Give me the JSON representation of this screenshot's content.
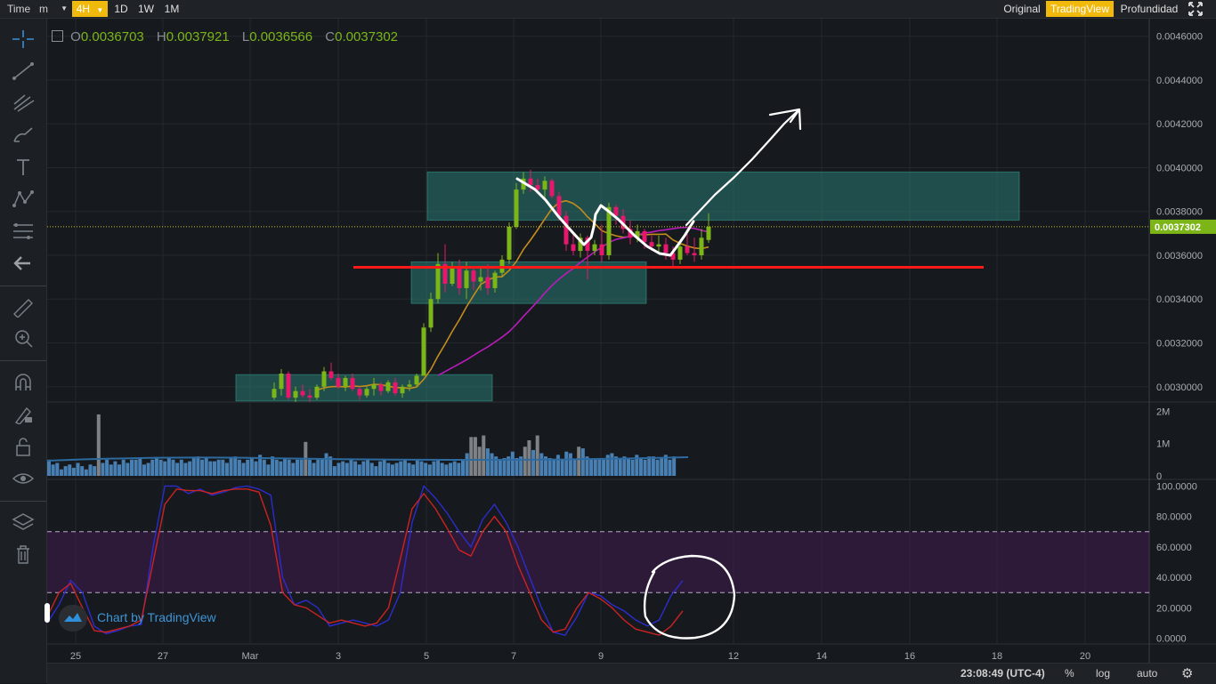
{
  "toolbar": {
    "time_label": "Time",
    "minute_select": "m",
    "timeframes": [
      "4H",
      "1D",
      "1W",
      "1M"
    ],
    "active_timeframe": "4H",
    "views": [
      "Original",
      "TradingView",
      "Profundidad"
    ],
    "active_view": "TradingView"
  },
  "ohlc": {
    "o_label": "O",
    "o_value": "0.0036703",
    "h_label": "H",
    "h_value": "0.0037921",
    "l_label": "L",
    "l_value": "0.0036566",
    "c_label": "C",
    "c_value": "0.0037302"
  },
  "watermark": "Chart by TradingView",
  "bottom": {
    "clock": "23:08:49 (UTC-4)",
    "percent": "%",
    "log": "log",
    "auto": "auto"
  },
  "colors": {
    "up": "#7cb518",
    "down": "#e6186d",
    "ma_short": "#c48c1c",
    "ma_long": "#b81cb8",
    "support_line": "#ff1a1a",
    "zone": "#2a7a72",
    "accent": "#f0b90b"
  },
  "chart_data": [
    {
      "type": "candlestick",
      "last_price": "0.0037302",
      "y_axis": {
        "ticks": [
          "0.0046000",
          "0.0044000",
          "0.0042000",
          "0.0040000",
          "0.0038000",
          "0.0036000",
          "0.0034000",
          "0.0032000",
          "0.0030000"
        ],
        "range": [
          0.00293,
          0.00468
        ]
      },
      "x_axis": {
        "ticks": [
          "25",
          "27",
          "Mar",
          "3",
          "5",
          "7",
          "9",
          "12",
          "14",
          "16",
          "18",
          "20"
        ]
      },
      "support_price": 0.003545,
      "zones": [
        {
          "from": 0.002935,
          "to": 0.003055
        },
        {
          "from": 0.00338,
          "to": 0.00357
        },
        {
          "from": 0.00376,
          "to": 0.00398
        }
      ],
      "candles": [
        [
          0.00295,
          0.00302,
          0.00294,
          0.00299
        ],
        [
          0.00299,
          0.00308,
          0.00296,
          0.00306
        ],
        [
          0.00306,
          0.00307,
          0.00294,
          0.00295
        ],
        [
          0.00295,
          0.003,
          0.00293,
          0.00298
        ],
        [
          0.00298,
          0.00301,
          0.00295,
          0.00296
        ],
        [
          0.00296,
          0.00299,
          0.00293,
          0.00295
        ],
        [
          0.00295,
          0.00301,
          0.00294,
          0.003
        ],
        [
          0.003,
          0.00309,
          0.00298,
          0.00307
        ],
        [
          0.00307,
          0.00311,
          0.00303,
          0.00304
        ],
        [
          0.00304,
          0.00306,
          0.00299,
          0.003
        ],
        [
          0.003,
          0.00305,
          0.00298,
          0.00304
        ],
        [
          0.00304,
          0.00306,
          0.00298,
          0.00299
        ],
        [
          0.00299,
          0.003,
          0.00294,
          0.00296
        ],
        [
          0.00296,
          0.003,
          0.00295,
          0.00299
        ],
        [
          0.00299,
          0.00304,
          0.00296,
          0.00301
        ],
        [
          0.00301,
          0.00302,
          0.00296,
          0.00298
        ],
        [
          0.00298,
          0.00303,
          0.00297,
          0.00302
        ],
        [
          0.00302,
          0.00304,
          0.00296,
          0.00297
        ],
        [
          0.00297,
          0.00301,
          0.00295,
          0.003
        ],
        [
          0.003,
          0.00303,
          0.00298,
          0.00301
        ],
        [
          0.00301,
          0.00306,
          0.003,
          0.00305
        ],
        [
          0.00305,
          0.00329,
          0.00305,
          0.00327
        ],
        [
          0.00327,
          0.00343,
          0.00325,
          0.0034
        ],
        [
          0.0034,
          0.00361,
          0.00338,
          0.00356
        ],
        [
          0.00356,
          0.00365,
          0.00343,
          0.00347
        ],
        [
          0.00347,
          0.00357,
          0.00346,
          0.00354
        ],
        [
          0.00354,
          0.00358,
          0.00342,
          0.00345
        ],
        [
          0.00345,
          0.00357,
          0.0034,
          0.00353
        ],
        [
          0.00353,
          0.00355,
          0.00344,
          0.00348
        ],
        [
          0.00348,
          0.00354,
          0.00344,
          0.0035
        ],
        [
          0.0035,
          0.00356,
          0.00342,
          0.00345
        ],
        [
          0.00345,
          0.00353,
          0.00343,
          0.00352
        ],
        [
          0.00352,
          0.0036,
          0.0035,
          0.00358
        ],
        [
          0.00358,
          0.00375,
          0.00356,
          0.00373
        ],
        [
          0.00373,
          0.00393,
          0.00372,
          0.0039
        ],
        [
          0.0039,
          0.00398,
          0.00388,
          0.00395
        ],
        [
          0.00395,
          0.00399,
          0.00389,
          0.00392
        ],
        [
          0.00392,
          0.00395,
          0.00388,
          0.0039
        ],
        [
          0.0039,
          0.00396,
          0.00385,
          0.00394
        ],
        [
          0.00394,
          0.00395,
          0.00386,
          0.00387
        ],
        [
          0.00387,
          0.00389,
          0.00376,
          0.00378
        ],
        [
          0.00378,
          0.0038,
          0.00362,
          0.00365
        ],
        [
          0.00365,
          0.00371,
          0.0036,
          0.00362
        ],
        [
          0.00362,
          0.0037,
          0.00359,
          0.00368
        ],
        [
          0.00368,
          0.00369,
          0.00349,
          0.00362
        ],
        [
          0.00362,
          0.00367,
          0.0036,
          0.00365
        ],
        [
          0.00365,
          0.00374,
          0.00357,
          0.0036
        ],
        [
          0.0036,
          0.00384,
          0.00358,
          0.00382
        ],
        [
          0.00382,
          0.00383,
          0.00374,
          0.00378
        ],
        [
          0.00378,
          0.00381,
          0.0037,
          0.00372
        ],
        [
          0.00372,
          0.00376,
          0.00365,
          0.00368
        ],
        [
          0.00368,
          0.00374,
          0.00366,
          0.00371
        ],
        [
          0.00371,
          0.00372,
          0.00363,
          0.00366
        ],
        [
          0.00366,
          0.00369,
          0.00362,
          0.00364
        ],
        [
          0.00364,
          0.00369,
          0.00361,
          0.00365
        ],
        [
          0.00365,
          0.00368,
          0.00358,
          0.00361
        ],
        [
          0.00361,
          0.00364,
          0.00355,
          0.00358
        ],
        [
          0.00358,
          0.00366,
          0.00356,
          0.00364
        ],
        [
          0.00364,
          0.0037,
          0.0036,
          0.00361
        ],
        [
          0.00361,
          0.00368,
          0.00357,
          0.0036
        ],
        [
          0.0036,
          0.00372,
          0.00358,
          0.00368
        ],
        [
          0.00367,
          0.003792,
          0.003657,
          0.00373
        ]
      ]
    },
    {
      "type": "bar",
      "title": "volume",
      "y_axis": {
        "ticks": [
          "2M",
          "1M",
          "0"
        ],
        "range": [
          0,
          2200000
        ]
      },
      "values": [
        0.5,
        0.35,
        0.4,
        0.2,
        0.3,
        0.35,
        0.25,
        0.4,
        0.3,
        0.2,
        0.35,
        0.3,
        1.9,
        0.4,
        0.5,
        0.35,
        0.45,
        0.35,
        0.5,
        0.4,
        0.5,
        0.5,
        0.55,
        0.35,
        0.4,
        0.5,
        0.55,
        0.5,
        0.45,
        0.55,
        0.5,
        0.4,
        0.5,
        0.4,
        0.45,
        0.55,
        0.6,
        0.5,
        0.55,
        0.45,
        0.45,
        0.5,
        0.5,
        0.4,
        0.55,
        0.6,
        0.5,
        0.4,
        0.5,
        0.55,
        0.45,
        0.65,
        0.5,
        0.35,
        0.6,
        0.5,
        0.45,
        0.55,
        0.5,
        0.4,
        0.5,
        0.5,
        1.05,
        0.5,
        0.4,
        0.5,
        0.5,
        0.7,
        0.6,
        0.3,
        0.4,
        0.45,
        0.4,
        0.5,
        0.45,
        0.35,
        0.45,
        0.5,
        0.4,
        0.3,
        0.45,
        0.5,
        0.4,
        0.35,
        0.4,
        0.45,
        0.5,
        0.4,
        0.35,
        0.5,
        0.45,
        0.4,
        0.35,
        0.45,
        0.5,
        0.4,
        0.35,
        0.4,
        0.45,
        0.4,
        0.5,
        0.7,
        1.2,
        1.2,
        0.9,
        1.25,
        0.85,
        0.7,
        0.6,
        0.5,
        0.55,
        0.6,
        0.75,
        0.55,
        0.6,
        0.9,
        1.1,
        0.8,
        1.25,
        0.7,
        0.6,
        0.55,
        0.5,
        0.65,
        0.5,
        0.75,
        0.7,
        0.5,
        0.9,
        0.85,
        0.6,
        0.5,
        0.5,
        0.55,
        0.5,
        0.65,
        0.7,
        0.6,
        0.55,
        0.6,
        0.55,
        0.5,
        0.65,
        0.55,
        0.5,
        0.6,
        0.6,
        0.5,
        0.55,
        0.65,
        0.5,
        0.6
      ]
    },
    {
      "type": "line",
      "title": "stochastic",
      "y_axis": {
        "ticks": [
          "100.0000",
          "80.0000",
          "60.0000",
          "40.0000",
          "20.0000",
          "0.0000"
        ],
        "range": [
          -2,
          102
        ]
      },
      "bands": [
        30,
        70
      ],
      "series": [
        {
          "values": [
            10,
            22,
            38,
            30,
            8,
            3,
            5,
            8,
            9,
            60,
            100,
            100,
            95,
            98,
            94,
            96,
            99,
            100,
            98,
            94,
            40,
            22,
            25,
            20,
            8,
            10,
            12,
            10,
            8,
            12,
            30,
            76,
            100,
            92,
            82,
            70,
            60,
            78,
            88,
            76,
            60,
            40,
            20,
            4,
            2,
            14,
            30,
            28,
            22,
            18,
            12,
            8,
            12,
            28,
            38
          ]
        },
        {
          "values": [
            14,
            30,
            36,
            20,
            5,
            4,
            6,
            8,
            12,
            50,
            88,
            98,
            97,
            97,
            95,
            97,
            98,
            98,
            96,
            74,
            30,
            22,
            20,
            15,
            10,
            12,
            10,
            8,
            10,
            20,
            52,
            85,
            95,
            85,
            72,
            58,
            54,
            70,
            80,
            70,
            48,
            30,
            12,
            4,
            6,
            20,
            30,
            26,
            20,
            12,
            6,
            4,
            2,
            8,
            18
          ]
        }
      ]
    }
  ]
}
